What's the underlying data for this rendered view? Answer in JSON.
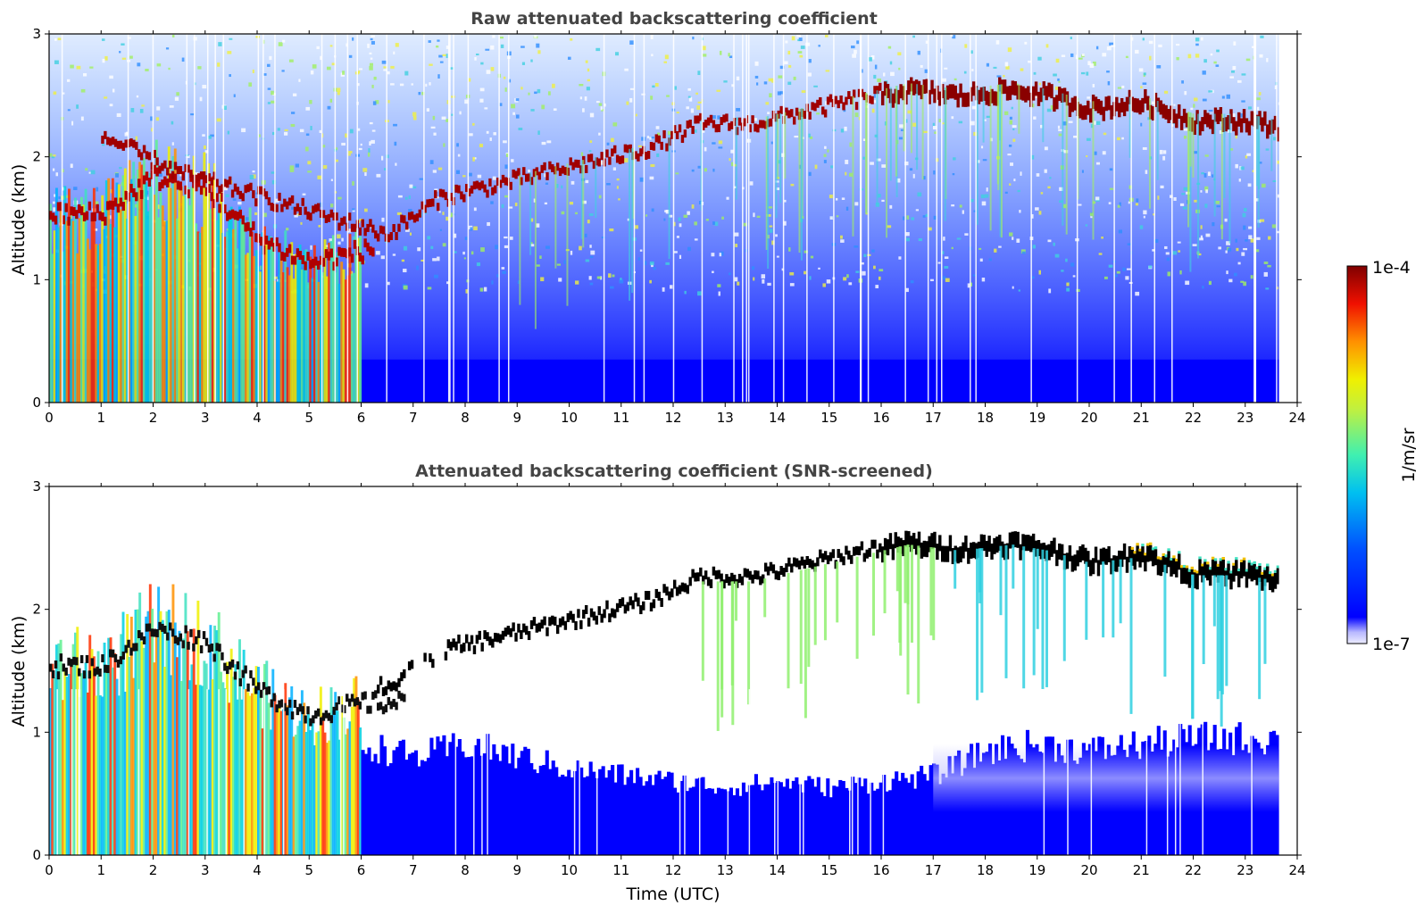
{
  "chart_data": [
    {
      "type": "heatmap",
      "title": "Raw attenuated backscattering coefficient",
      "xlabel": "",
      "ylabel": "Altitude (km)",
      "xlim": [
        0,
        24
      ],
      "ylim": [
        0,
        3
      ],
      "xticks": [
        "0",
        "1",
        "2",
        "3",
        "4",
        "5",
        "6",
        "7",
        "8",
        "9",
        "10",
        "11",
        "12",
        "13",
        "14",
        "15",
        "16",
        "17",
        "18",
        "19",
        "20",
        "21",
        "22",
        "23",
        "24"
      ],
      "yticks": [
        "0",
        "1",
        "2",
        "3"
      ],
      "data_end_hour": 23.65,
      "cloud_top_layer": {
        "time_hours": [
          1.0,
          2.5,
          6.5,
          7.5,
          8.5,
          9.5,
          10.5,
          11.5,
          12.5,
          13.5,
          14.5,
          15.5,
          16.5,
          17.5,
          18.5,
          19.2,
          20.0,
          21.0,
          22.0,
          23.0,
          23.6
        ],
        "altitude_km": [
          2.2,
          1.9,
          1.4,
          1.7,
          1.8,
          1.9,
          2.0,
          2.1,
          2.3,
          2.3,
          2.4,
          2.5,
          2.6,
          2.55,
          2.6,
          2.55,
          2.45,
          2.5,
          2.35,
          2.35,
          2.3
        ]
      },
      "low_layer": {
        "time_hours": [
          0.0,
          1.0,
          2.0,
          3.0,
          4.0,
          5.0,
          6.0
        ],
        "altitude_km": [
          1.5,
          1.5,
          1.8,
          1.7,
          1.3,
          1.1,
          1.2
        ]
      }
    },
    {
      "type": "heatmap",
      "title": "Attenuated backscattering coefficient (SNR-screened)",
      "xlabel": "Time (UTC)",
      "ylabel": "Altitude (km)",
      "xlim": [
        0,
        24
      ],
      "ylim": [
        0,
        3
      ],
      "xticks": [
        "0",
        "1",
        "2",
        "3",
        "4",
        "5",
        "6",
        "7",
        "8",
        "9",
        "10",
        "11",
        "12",
        "13",
        "14",
        "15",
        "16",
        "17",
        "18",
        "19",
        "20",
        "21",
        "22",
        "23",
        "24"
      ],
      "yticks": [
        "0",
        "1",
        "2",
        "3"
      ],
      "data_end_hour": 23.65,
      "boundary_layer_top": {
        "time_hours": [
          6.0,
          7.0,
          8.0,
          9.0,
          10.0,
          11.0,
          12.0,
          13.0,
          14.0,
          15.0,
          16.0,
          17.0,
          18.0,
          19.0,
          20.0,
          21.0,
          22.0,
          23.0,
          23.6
        ],
        "altitude_km": [
          0.9,
          0.8,
          0.9,
          0.8,
          0.7,
          0.65,
          0.6,
          0.55,
          0.6,
          0.55,
          0.6,
          0.65,
          0.85,
          0.9,
          0.85,
          0.9,
          0.95,
          0.95,
          0.95
        ]
      }
    }
  ],
  "colorbar": {
    "label": "1/m/sr",
    "max_label": "1e-4",
    "min_label": "1e-7",
    "colormap": [
      "#0000ff",
      "#0090ff",
      "#00e5e0",
      "#7ff07f",
      "#f0f000",
      "#ff8000",
      "#ff1000",
      "#800000"
    ],
    "low_color": "#e8e8ff"
  }
}
